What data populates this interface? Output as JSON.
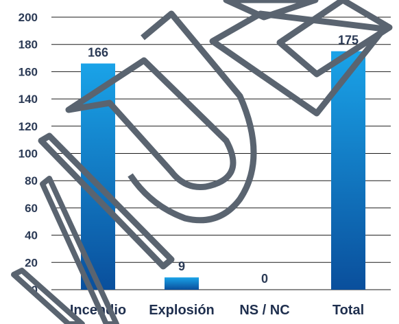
{
  "chart_data": {
    "type": "bar",
    "categories": [
      "Incendio",
      "Explosión",
      "NS / NC",
      "Total"
    ],
    "values": [
      166,
      9,
      0,
      175
    ],
    "data_labels": [
      "166",
      "9",
      "0",
      "175"
    ],
    "title": "",
    "xlabel": "",
    "ylabel": "",
    "ylim": [
      0,
      200
    ],
    "yticks": [
      0,
      20,
      40,
      60,
      80,
      100,
      120,
      140,
      160,
      180,
      200
    ],
    "grid": true,
    "legend": "none",
    "colors": {
      "bar_top": "#1aa3e8",
      "bar_bottom": "#0a4f9c",
      "grid": "#1a1a1a",
      "watermark": "#5a6470"
    }
  }
}
